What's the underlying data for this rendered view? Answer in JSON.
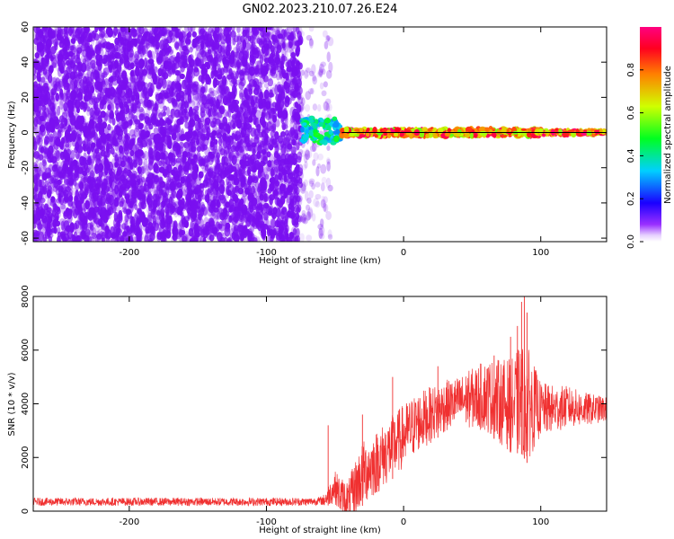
{
  "title": "GN02.2023.210.07.26.E24",
  "colors": {
    "spectrogram_points": "#7a10f0",
    "snr_line": "#f03030",
    "axes": "#000000"
  },
  "colorbar": {
    "label": "Normalized spectral amplitude",
    "ticks": [
      "0.0",
      "0.2",
      "0.4",
      "0.6",
      "0.8"
    ],
    "tick_values": [
      0.0,
      0.2,
      0.4,
      0.6,
      0.8
    ],
    "range": [
      0,
      1
    ],
    "colormap": "gist_rainbow_r"
  },
  "chart_data": [
    {
      "type": "heatmap",
      "title": "",
      "xlabel": "Height of straight line (km)",
      "ylabel": "Frequency (Hz)",
      "xlim": [
        -270,
        148
      ],
      "ylim": [
        -62,
        60
      ],
      "xticks": [
        -200,
        -100,
        0,
        100
      ],
      "xtick_labels": [
        "-200",
        "-100",
        "0",
        "100"
      ],
      "yticks": [
        -60,
        -40,
        -20,
        0,
        20,
        40,
        60
      ],
      "ytick_labels": [
        "-60",
        "-40",
        "-20",
        "0",
        "20",
        "40",
        "60"
      ],
      "grid": false,
      "regions": [
        {
          "x_range": [
            -270,
            -75
          ],
          "freq_range": [
            -62,
            60
          ],
          "amplitude": 0.12,
          "description_of_pattern": "broadband noise"
        },
        {
          "x_range": [
            -75,
            -58
          ],
          "freq_range": [
            -62,
            60
          ],
          "amplitude": 0.05
        },
        {
          "x_range": [
            -58,
            -53
          ],
          "freq_range": [
            -62,
            60
          ],
          "amplitude": 0.04
        },
        {
          "x_range": [
            -75,
            -45
          ],
          "freq_range": [
            -6,
            8
          ],
          "amplitude": 0.45
        },
        {
          "x_range": [
            -45,
            100
          ],
          "freq_range": [
            -2,
            2
          ],
          "amplitude": 0.9
        },
        {
          "x_range": [
            100,
            148
          ],
          "freq_range": [
            -1,
            1
          ],
          "amplitude": 0.95
        }
      ]
    },
    {
      "type": "line",
      "title": "",
      "xlabel": "Height of straight line (km)",
      "ylabel": "SNR (10 * v/v)",
      "xlim": [
        -270,
        148
      ],
      "ylim": [
        0,
        8000
      ],
      "xticks": [
        -200,
        -100,
        0,
        100
      ],
      "xtick_labels": [
        "-200",
        "-100",
        "0",
        "100"
      ],
      "yticks": [
        0,
        2000,
        4000,
        6000,
        8000
      ],
      "ytick_labels": [
        "0",
        "2000",
        "4000",
        "6000",
        "8000"
      ],
      "grid": false,
      "envelope": {
        "x": [
          -270,
          -200,
          -100,
          -70,
          -58,
          -50,
          -45,
          -40,
          -35,
          -30,
          -20,
          -10,
          0,
          10,
          20,
          30,
          40,
          50,
          60,
          70,
          80,
          85,
          90,
          95,
          100,
          110,
          120,
          130,
          148
        ],
        "y": [
          350,
          350,
          350,
          350,
          400,
          900,
          500,
          300,
          900,
          1400,
          1800,
          2300,
          2800,
          3300,
          3600,
          3900,
          4100,
          4200,
          4300,
          4100,
          3900,
          4200,
          4000,
          3900,
          3800,
          3800,
          3900,
          3800,
          3800
        ]
      },
      "noise_amplitude": {
        "x": [
          -270,
          -60,
          -50,
          -30,
          0,
          40,
          80,
          90,
          100,
          148
        ],
        "y": [
          150,
          150,
          600,
          1200,
          1200,
          900,
          1800,
          2200,
          1000,
          450
        ]
      },
      "peaks": [
        {
          "x": 88,
          "y": 8000
        },
        {
          "x": 86,
          "y": 7800
        },
        {
          "x": 90,
          "y": 7400
        },
        {
          "x": 78,
          "y": 6500
        },
        {
          "x": 83,
          "y": 6900
        },
        {
          "x": 66,
          "y": 5800
        },
        {
          "x": 25,
          "y": 5400
        },
        {
          "x": -8,
          "y": 5000
        },
        {
          "x": -55,
          "y": 3200
        },
        {
          "x": -30,
          "y": 3600
        }
      ]
    }
  ]
}
